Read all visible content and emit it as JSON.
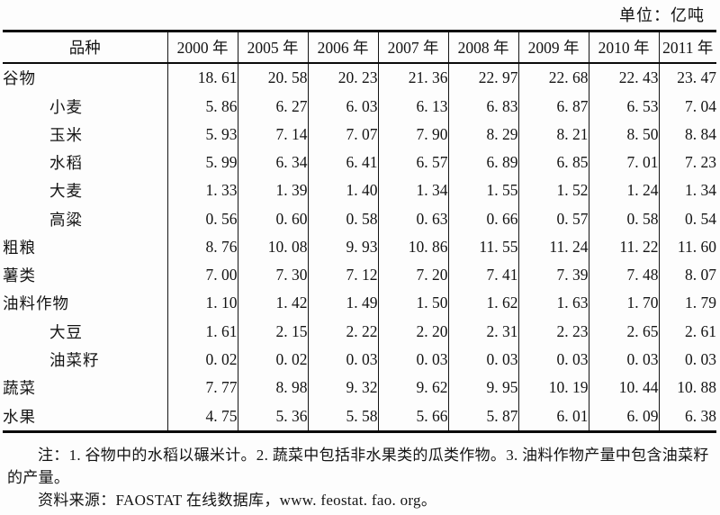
{
  "page": {
    "unit_label": "单位：亿吨"
  },
  "table": {
    "columns": [
      "品种",
      "2000 年",
      "2005 年",
      "2006 年",
      "2007 年",
      "2008 年",
      "2009 年",
      "2010 年",
      "2011 年"
    ],
    "rows": [
      {
        "label": "谷物",
        "indent": false,
        "values": [
          "18. 61",
          "20. 58",
          "20. 23",
          "21. 36",
          "22. 97",
          "22. 68",
          "22. 43",
          "23. 47"
        ]
      },
      {
        "label": "小麦",
        "indent": true,
        "values": [
          "5. 86",
          "6. 27",
          "6. 03",
          "6. 13",
          "6. 83",
          "6. 87",
          "6. 53",
          "7. 04"
        ]
      },
      {
        "label": "玉米",
        "indent": true,
        "values": [
          "5. 93",
          "7. 14",
          "7. 07",
          "7. 90",
          "8. 29",
          "8. 21",
          "8. 50",
          "8. 84"
        ]
      },
      {
        "label": "水稻",
        "indent": true,
        "values": [
          "5. 99",
          "6. 34",
          "6. 41",
          "6. 57",
          "6. 89",
          "6. 85",
          "7. 01",
          "7. 23"
        ]
      },
      {
        "label": "大麦",
        "indent": true,
        "values": [
          "1. 33",
          "1. 39",
          "1. 40",
          "1. 34",
          "1. 55",
          "1. 52",
          "1. 24",
          "1. 34"
        ]
      },
      {
        "label": "高粱",
        "indent": true,
        "values": [
          "0. 56",
          "0. 60",
          "0. 58",
          "0. 63",
          "0. 66",
          "0. 57",
          "0. 58",
          "0. 54"
        ]
      },
      {
        "label": "粗粮",
        "indent": false,
        "values": [
          "8. 76",
          "10. 08",
          "9. 93",
          "10. 86",
          "11. 55",
          "11. 24",
          "11. 22",
          "11. 60"
        ]
      },
      {
        "label": "薯类",
        "indent": false,
        "values": [
          "7. 00",
          "7. 30",
          "7. 12",
          "7. 20",
          "7. 41",
          "7. 39",
          "7. 48",
          "8. 07"
        ]
      },
      {
        "label": "油料作物",
        "indent": false,
        "values": [
          "1. 10",
          "1. 42",
          "1. 49",
          "1. 50",
          "1. 62",
          "1. 63",
          "1. 70",
          "1. 79"
        ]
      },
      {
        "label": "大豆",
        "indent": true,
        "values": [
          "1. 61",
          "2. 15",
          "2. 22",
          "2. 20",
          "2. 31",
          "2. 23",
          "2. 65",
          "2. 61"
        ]
      },
      {
        "label": "油菜籽",
        "indent": true,
        "values": [
          "0. 02",
          "0. 02",
          "0. 03",
          "0. 03",
          "0. 03",
          "0. 03",
          "0. 03",
          "0. 03"
        ]
      },
      {
        "label": "蔬菜",
        "indent": false,
        "values": [
          "7. 77",
          "8. 98",
          "9. 32",
          "9. 62",
          "9. 95",
          "10. 19",
          "10. 44",
          "10. 88"
        ]
      },
      {
        "label": "水果",
        "indent": false,
        "values": [
          "4. 75",
          "5. 36",
          "5. 58",
          "5. 66",
          "5. 87",
          "6. 01",
          "6. 09",
          "6. 38"
        ]
      }
    ]
  },
  "notes": {
    "note": "注：1. 谷物中的水稻以碾米计。2. 蔬菜中包括非水果类的瓜类作物。3. 油料作物产量中包含油菜籽的产量。",
    "source": "资料来源：FAOSTAT 在线数据库，www. feostat. fao. org。"
  },
  "colors": {
    "text": "#141414",
    "border": "#0a0a0a",
    "background": "#fdfdfd"
  },
  "chart_data": {
    "type": "table",
    "title": "",
    "unit": "亿吨",
    "categories": [
      "2000",
      "2005",
      "2006",
      "2007",
      "2008",
      "2009",
      "2010",
      "2011"
    ],
    "series": [
      {
        "name": "谷物",
        "values": [
          18.61,
          20.58,
          20.23,
          21.36,
          22.97,
          22.68,
          22.43,
          23.47
        ]
      },
      {
        "name": "小麦",
        "values": [
          5.86,
          6.27,
          6.03,
          6.13,
          6.83,
          6.87,
          6.53,
          7.04
        ]
      },
      {
        "name": "玉米",
        "values": [
          5.93,
          7.14,
          7.07,
          7.9,
          8.29,
          8.21,
          8.5,
          8.84
        ]
      },
      {
        "name": "水稻",
        "values": [
          5.99,
          6.34,
          6.41,
          6.57,
          6.89,
          6.85,
          7.01,
          7.23
        ]
      },
      {
        "name": "大麦",
        "values": [
          1.33,
          1.39,
          1.4,
          1.34,
          1.55,
          1.52,
          1.24,
          1.34
        ]
      },
      {
        "name": "高粱",
        "values": [
          0.56,
          0.6,
          0.58,
          0.63,
          0.66,
          0.57,
          0.58,
          0.54
        ]
      },
      {
        "name": "粗粮",
        "values": [
          8.76,
          10.08,
          9.93,
          10.86,
          11.55,
          11.24,
          11.22,
          11.6
        ]
      },
      {
        "name": "薯类",
        "values": [
          7.0,
          7.3,
          7.12,
          7.2,
          7.41,
          7.39,
          7.48,
          8.07
        ]
      },
      {
        "name": "油料作物",
        "values": [
          1.1,
          1.42,
          1.49,
          1.5,
          1.62,
          1.63,
          1.7,
          1.79
        ]
      },
      {
        "name": "大豆",
        "values": [
          1.61,
          2.15,
          2.22,
          2.2,
          2.31,
          2.23,
          2.65,
          2.61
        ]
      },
      {
        "name": "油菜籽",
        "values": [
          0.02,
          0.02,
          0.03,
          0.03,
          0.03,
          0.03,
          0.03,
          0.03
        ]
      },
      {
        "name": "蔬菜",
        "values": [
          7.77,
          8.98,
          9.32,
          9.62,
          9.95,
          10.19,
          10.44,
          10.88
        ]
      },
      {
        "name": "水果",
        "values": [
          4.75,
          5.36,
          5.58,
          5.66,
          5.87,
          6.01,
          6.09,
          6.38
        ]
      }
    ]
  }
}
